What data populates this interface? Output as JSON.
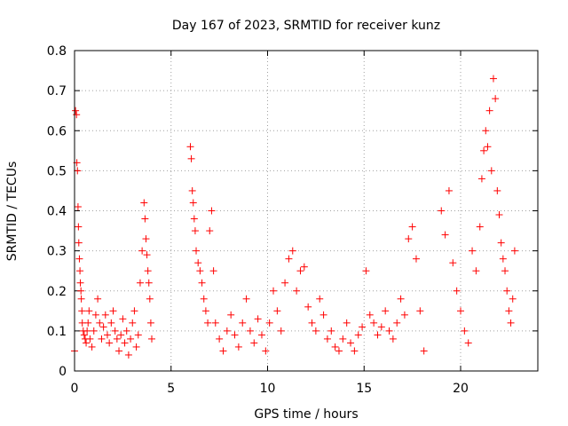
{
  "chart_data": {
    "type": "scatter",
    "title": "Day 167 of 2023, SRMTID for receiver kunz",
    "xlabel": "GPS time / hours",
    "ylabel": "SRMTID / TECUs",
    "xlim": [
      0,
      24
    ],
    "ylim": [
      0,
      0.8
    ],
    "xticks": [
      0,
      5,
      10,
      15,
      20
    ],
    "xtick_labels": [
      "0",
      "5",
      "10",
      "15",
      "20"
    ],
    "yticks": [
      0,
      0.1,
      0.2,
      0.3,
      0.4,
      0.5,
      0.6,
      0.7,
      0.8
    ],
    "ytick_labels": [
      "0",
      "0.1",
      "0.2",
      "0.3",
      "0.4",
      "0.5",
      "0.6",
      "0.7",
      "0.8"
    ],
    "grid": true,
    "marker": "+",
    "color": "#ff0000",
    "series": [
      {
        "name": "SRMTID",
        "x": [
          0.0,
          0.05,
          0.1,
          0.12,
          0.15,
          0.18,
          0.2,
          0.22,
          0.25,
          0.28,
          0.3,
          0.33,
          0.35,
          0.38,
          0.4,
          0.45,
          0.5,
          0.55,
          0.6,
          0.65,
          0.7,
          0.75,
          0.8,
          0.9,
          1.0,
          1.1,
          1.2,
          1.3,
          1.4,
          1.5,
          1.6,
          1.7,
          1.8,
          1.9,
          2.0,
          2.1,
          2.2,
          2.3,
          2.4,
          2.5,
          2.6,
          2.7,
          2.8,
          2.9,
          3.0,
          3.1,
          3.2,
          3.3,
          3.4,
          3.5,
          3.6,
          3.65,
          3.7,
          3.75,
          3.8,
          3.85,
          3.9,
          3.95,
          4.0,
          6.0,
          6.05,
          6.1,
          6.15,
          6.2,
          6.25,
          6.3,
          6.4,
          6.5,
          6.6,
          6.7,
          6.8,
          6.9,
          7.0,
          7.1,
          7.2,
          7.3,
          7.5,
          7.7,
          7.9,
          8.1,
          8.3,
          8.5,
          8.7,
          8.9,
          9.1,
          9.3,
          9.5,
          9.7,
          9.9,
          10.1,
          10.3,
          10.5,
          10.7,
          10.9,
          11.1,
          11.3,
          11.5,
          11.7,
          11.9,
          12.1,
          12.3,
          12.5,
          12.7,
          12.9,
          13.1,
          13.3,
          13.5,
          13.7,
          13.9,
          14.1,
          14.3,
          14.5,
          14.7,
          14.9,
          15.1,
          15.3,
          15.5,
          15.7,
          15.9,
          16.1,
          16.3,
          16.5,
          16.7,
          16.9,
          17.1,
          17.3,
          17.5,
          17.7,
          17.9,
          18.1,
          19.0,
          19.2,
          19.4,
          19.6,
          19.8,
          20.0,
          20.2,
          20.4,
          20.6,
          20.8,
          21.0,
          21.1,
          21.2,
          21.3,
          21.4,
          21.5,
          21.6,
          21.7,
          21.8,
          21.9,
          22.0,
          22.1,
          22.2,
          22.3,
          22.4,
          22.5,
          22.6,
          22.7,
          22.8
        ],
        "y": [
          0.05,
          0.65,
          0.64,
          0.52,
          0.5,
          0.41,
          0.36,
          0.32,
          0.28,
          0.25,
          0.22,
          0.2,
          0.18,
          0.15,
          0.12,
          0.1,
          0.09,
          0.08,
          0.07,
          0.1,
          0.12,
          0.15,
          0.08,
          0.06,
          0.1,
          0.14,
          0.18,
          0.12,
          0.08,
          0.11,
          0.14,
          0.09,
          0.07,
          0.12,
          0.15,
          0.1,
          0.08,
          0.05,
          0.09,
          0.13,
          0.07,
          0.1,
          0.04,
          0.08,
          0.12,
          0.15,
          0.06,
          0.09,
          0.22,
          0.3,
          0.42,
          0.38,
          0.33,
          0.29,
          0.25,
          0.22,
          0.18,
          0.12,
          0.08,
          0.56,
          0.53,
          0.45,
          0.42,
          0.38,
          0.35,
          0.3,
          0.27,
          0.25,
          0.22,
          0.18,
          0.15,
          0.12,
          0.35,
          0.4,
          0.25,
          0.12,
          0.08,
          0.05,
          0.1,
          0.14,
          0.09,
          0.06,
          0.12,
          0.18,
          0.1,
          0.07,
          0.13,
          0.09,
          0.05,
          0.12,
          0.2,
          0.15,
          0.1,
          0.22,
          0.28,
          0.3,
          0.2,
          0.25,
          0.26,
          0.16,
          0.12,
          0.1,
          0.18,
          0.14,
          0.08,
          0.1,
          0.06,
          0.05,
          0.08,
          0.12,
          0.07,
          0.05,
          0.09,
          0.11,
          0.25,
          0.14,
          0.12,
          0.09,
          0.11,
          0.15,
          0.1,
          0.08,
          0.12,
          0.18,
          0.14,
          0.33,
          0.36,
          0.28,
          0.15,
          0.05,
          0.4,
          0.34,
          0.45,
          0.27,
          0.2,
          0.15,
          0.1,
          0.07,
          0.3,
          0.25,
          0.36,
          0.48,
          0.55,
          0.6,
          0.56,
          0.65,
          0.5,
          0.73,
          0.68,
          0.45,
          0.39,
          0.32,
          0.28,
          0.25,
          0.2,
          0.15,
          0.12,
          0.18,
          0.3
        ]
      }
    ]
  }
}
